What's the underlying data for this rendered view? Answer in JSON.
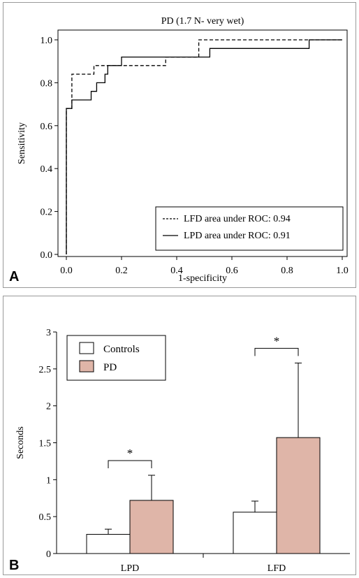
{
  "panel_a": {
    "letter": "A",
    "chart_data": {
      "type": "line",
      "title": "PD (1.7 N- very wet)",
      "xlabel": "1-specificity",
      "ylabel": "Sensitivity",
      "xlim": [
        0,
        1
      ],
      "ylim": [
        0,
        1
      ],
      "x_ticks": [
        "0.0",
        "0.2",
        "0.4",
        "0.6",
        "0.8",
        "1.0"
      ],
      "y_ticks": [
        "0.0",
        "0.2",
        "0.4",
        "0.6",
        "0.8",
        "1.0"
      ],
      "legend_position": "bottom-right",
      "series": [
        {
          "name": "LFD area under ROC: 0.94",
          "style": "dashed",
          "points": [
            [
              0,
              0
            ],
            [
              0,
              0.68
            ],
            [
              0.02,
              0.68
            ],
            [
              0.02,
              0.84
            ],
            [
              0.1,
              0.84
            ],
            [
              0.1,
              0.88
            ],
            [
              0.2,
              0.88
            ],
            [
              0.2,
              0.88
            ],
            [
              0.36,
              0.88
            ],
            [
              0.36,
              0.92
            ],
            [
              0.48,
              0.92
            ],
            [
              0.48,
              1.0
            ],
            [
              1.0,
              1.0
            ]
          ]
        },
        {
          "name": "LPD area under ROC: 0.91",
          "style": "solid",
          "points": [
            [
              0,
              0
            ],
            [
              0,
              0.68
            ],
            [
              0.02,
              0.68
            ],
            [
              0.02,
              0.72
            ],
            [
              0.09,
              0.72
            ],
            [
              0.09,
              0.76
            ],
            [
              0.11,
              0.76
            ],
            [
              0.11,
              0.8
            ],
            [
              0.14,
              0.8
            ],
            [
              0.14,
              0.84
            ],
            [
              0.15,
              0.84
            ],
            [
              0.15,
              0.88
            ],
            [
              0.2,
              0.88
            ],
            [
              0.2,
              0.92
            ],
            [
              0.52,
              0.92
            ],
            [
              0.52,
              0.96
            ],
            [
              0.88,
              0.96
            ],
            [
              0.88,
              1.0
            ],
            [
              1.0,
              1.0
            ]
          ]
        }
      ]
    }
  },
  "panel_b": {
    "letter": "B",
    "chart_data": {
      "type": "bar",
      "title": "",
      "xlabel": "",
      "ylabel": "Seconds",
      "ylim": [
        0,
        3
      ],
      "y_ticks": [
        "0",
        "0.5",
        "1",
        "1.5",
        "2",
        "2.5",
        "3"
      ],
      "categories": [
        "LPD",
        "LFD"
      ],
      "legend_position": "top-left",
      "significance_marker": "*",
      "series": [
        {
          "name": "Controls",
          "color": "#ffffff",
          "values": [
            0.26,
            0.56
          ],
          "errors": [
            0.07,
            0.15
          ]
        },
        {
          "name": "PD",
          "color": "#dfb5a8",
          "values": [
            0.72,
            1.57
          ],
          "errors": [
            0.34,
            1.01
          ]
        }
      ]
    }
  }
}
